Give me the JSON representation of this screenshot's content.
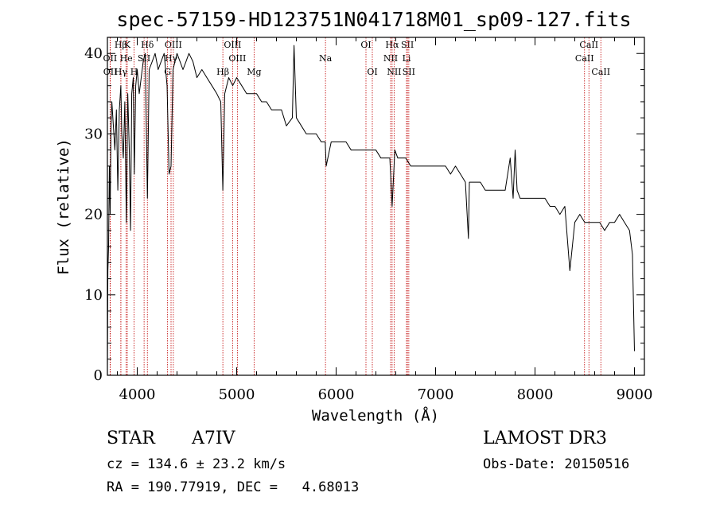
{
  "chart_data": {
    "type": "line",
    "title": "spec-57159-HD123751N041718M01_sp09-127.fits",
    "xlabel": "Wavelength (Å)",
    "ylabel": "Flux (relative)",
    "xlim": [
      3700,
      9100
    ],
    "ylim": [
      0,
      42
    ],
    "xticks": [
      4000,
      5000,
      6000,
      7000,
      8000,
      9000
    ],
    "yticks": [
      0,
      10,
      20,
      30,
      40
    ],
    "series": [
      {
        "name": "spectrum",
        "x": [
          3700,
          3705,
          3712,
          3720,
          3728,
          3735,
          3745,
          3760,
          3775,
          3790,
          3805,
          3820,
          3835,
          3845,
          3860,
          3875,
          3890,
          3905,
          3920,
          3933,
          3945,
          3960,
          3970,
          3985,
          4000,
          4020,
          4040,
          4060,
          4080,
          4102,
          4120,
          4150,
          4180,
          4210,
          4240,
          4270,
          4300,
          4320,
          4340,
          4360,
          4380,
          4400,
          4430,
          4460,
          4490,
          4520,
          4560,
          4600,
          4650,
          4700,
          4750,
          4800,
          4840,
          4861,
          4880,
          4920,
          4960,
          5000,
          5050,
          5100,
          5150,
          5200,
          5250,
          5300,
          5350,
          5400,
          5450,
          5500,
          5560,
          5577,
          5600,
          5650,
          5700,
          5750,
          5800,
          5850,
          5890,
          5900,
          5950,
          6000,
          6050,
          6100,
          6150,
          6200,
          6250,
          6300,
          6350,
          6400,
          6450,
          6500,
          6540,
          6563,
          6590,
          6620,
          6650,
          6700,
          6750,
          6800,
          6850,
          6900,
          6950,
          7000,
          7050,
          7100,
          7150,
          7200,
          7250,
          7300,
          7330,
          7340,
          7360,
          7400,
          7450,
          7500,
          7550,
          7600,
          7650,
          7700,
          7750,
          7780,
          7800,
          7820,
          7850,
          7900,
          7950,
          8000,
          8050,
          8100,
          8150,
          8200,
          8250,
          8300,
          8350,
          8400,
          8450,
          8500,
          8550,
          8600,
          8650,
          8700,
          8750,
          8800,
          8850,
          8900,
          8950,
          8980,
          9000
        ],
        "y": [
          1,
          13,
          16,
          26,
          20,
          30,
          34,
          31,
          28,
          33,
          23,
          33,
          36,
          30,
          27,
          34,
          19,
          35,
          28,
          18,
          35,
          37,
          25,
          36,
          38,
          35,
          37,
          39,
          40,
          22,
          38,
          39,
          40,
          38,
          39,
          40,
          36,
          25,
          26,
          38,
          39,
          40,
          39,
          38,
          39,
          40,
          39,
          37,
          38,
          37,
          36,
          35,
          34,
          23,
          35,
          37,
          36,
          37,
          36,
          35,
          35,
          35,
          34,
          34,
          33,
          33,
          33,
          31,
          32,
          41,
          32,
          31,
          30,
          30,
          30,
          29,
          29,
          26,
          29,
          29,
          29,
          29,
          28,
          28,
          28,
          28,
          28,
          28,
          27,
          27,
          27,
          21,
          28,
          27,
          27,
          27,
          26,
          26,
          26,
          26,
          26,
          26,
          26,
          26,
          25,
          26,
          25,
          24,
          17,
          24,
          24,
          24,
          24,
          23,
          23,
          23,
          23,
          23,
          27,
          22,
          28,
          23,
          22,
          22,
          22,
          22,
          22,
          22,
          21,
          21,
          20,
          21,
          13,
          19,
          20,
          19,
          19,
          19,
          19,
          18,
          19,
          19,
          20,
          19,
          18,
          15,
          3
        ]
      }
    ],
    "spectral_lines": [
      {
        "label": "Hβ",
        "x": 3835,
        "row": 0
      },
      {
        "label": "K",
        "x": 3900,
        "row": 0
      },
      {
        "label": "Hδ",
        "x": 4102,
        "row": 0
      },
      {
        "label": "OIII",
        "x": 4363,
        "row": 0
      },
      {
        "label": "OIII",
        "x": 4959,
        "row": 0
      },
      {
        "label": "OI",
        "x": 6300,
        "row": 0
      },
      {
        "label": "Hα",
        "x": 6563,
        "row": 0
      },
      {
        "label": "SII",
        "x": 6717,
        "row": 0
      },
      {
        "label": "CaII",
        "x": 8542,
        "row": 0
      },
      {
        "label": "OII",
        "x": 3727,
        "row": 1
      },
      {
        "label": "He",
        "x": 3889,
        "row": 1
      },
      {
        "label": "SII",
        "x": 4069,
        "row": 1
      },
      {
        "label": "Hγ",
        "x": 4340,
        "row": 1
      },
      {
        "label": "OIII",
        "x": 5007,
        "row": 1
      },
      {
        "label": "Na",
        "x": 5893,
        "row": 1
      },
      {
        "label": "NII",
        "x": 6548,
        "row": 1
      },
      {
        "label": "Li",
        "x": 6708,
        "row": 1
      },
      {
        "label": "CaII",
        "x": 8498,
        "row": 1
      },
      {
        "label": "OII",
        "x": 3729,
        "row": 2
      },
      {
        "label": "Hγ",
        "x": 3835,
        "row": 2
      },
      {
        "label": "H",
        "x": 3968,
        "row": 2
      },
      {
        "label": "G",
        "x": 4305,
        "row": 2
      },
      {
        "label": "Hβ",
        "x": 4861,
        "row": 2
      },
      {
        "label": "Mg",
        "x": 5175,
        "row": 2
      },
      {
        "label": "OI",
        "x": 6364,
        "row": 2
      },
      {
        "label": "NII",
        "x": 6583,
        "row": 2
      },
      {
        "label": "SII",
        "x": 6731,
        "row": 2
      },
      {
        "label": "CaII",
        "x": 8662,
        "row": 2
      }
    ],
    "line_color": "#c00000"
  },
  "info": {
    "object_type": "STAR",
    "subclass": "A7IV",
    "survey": "LAMOST DR3",
    "redshift": "cz = 134.6 ± 23.2 km/s",
    "obs_date": "Obs-Date: 20150516",
    "coords": "RA = 190.77919, DEC =   4.68013"
  }
}
